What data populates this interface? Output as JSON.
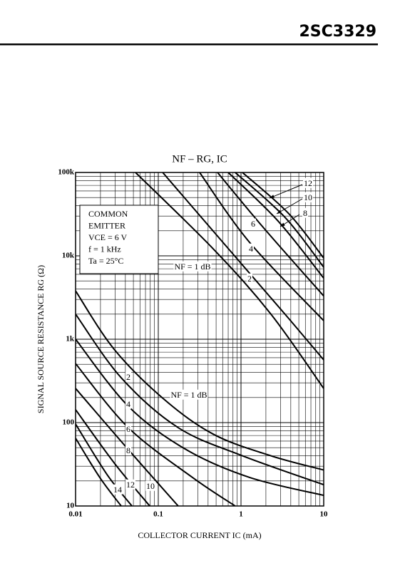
{
  "header": {
    "part_number": "2SC3329"
  },
  "chart_data": {
    "type": "line",
    "title": "NF – RG, IC",
    "xlabel": "COLLECTOR CURRENT IC (mA)",
    "ylabel": "SIGNAL SOURCE RESISTANCE RG (Ω)",
    "annotation": [
      "COMMON",
      "EMITTER",
      "VCE = 6 V",
      "f = 1 kHz",
      "Ta = 25°C"
    ],
    "xscale": "log",
    "yscale": "log",
    "grid": true,
    "xlim": [
      0.01,
      10
    ],
    "ylim": [
      10,
      100000
    ],
    "xticks": [
      0.01,
      0.1,
      1,
      10
    ],
    "yticks": [
      10,
      100,
      {
        "value": 1000,
        "label": "1k"
      },
      {
        "value": 10000,
        "label": "10k"
      },
      {
        "value": 100000,
        "label": "100k"
      }
    ],
    "series": [
      {
        "name": "NF = 1 dB",
        "color": "#000000",
        "x": [
          0.053,
          0.47,
          2.3,
          10
        ],
        "values": [
          100000,
          11900,
          2000,
          257
        ]
      },
      {
        "name": "2",
        "color": "#000000",
        "x": [
          0.113,
          0.85,
          3.4,
          10
        ],
        "values": [
          100000,
          9800,
          2000,
          565
        ]
      },
      {
        "name": "4",
        "color": "#000000",
        "x": [
          0.316,
          1.27,
          10
        ],
        "values": [
          100000,
          14500,
          1670
        ]
      },
      {
        "name": "6",
        "color": "#000000",
        "x": [
          0.52,
          1.89,
          10
        ],
        "values": [
          100000,
          21500,
          3300
        ]
      },
      {
        "name": "8",
        "color": "#000000",
        "x": [
          0.7,
          2.8,
          10
        ],
        "values": [
          100000,
          26200,
          5400
        ]
      },
      {
        "name": "10",
        "color": "#000000",
        "x": [
          0.85,
          3.4,
          10
        ],
        "values": [
          100000,
          29000,
          7300
        ]
      },
      {
        "name": "12",
        "color": "#000000",
        "x": [
          1.04,
          3.8,
          10
        ],
        "values": [
          100000,
          31900,
          9400
        ]
      },
      {
        "name": "NF = 1 dB",
        "color": "#000000",
        "x": [
          0.01,
          0.0292,
          0.117,
          0.47,
          2.3,
          10
        ],
        "values": [
          3800,
          760,
          191,
          72,
          40,
          27
        ]
      },
      {
        "name": "2",
        "color": "#000000",
        "x": [
          0.01,
          0.0356,
          0.174,
          1.04,
          10
        ],
        "values": [
          2000,
          345,
          87,
          40,
          18
        ]
      },
      {
        "name": "4",
        "color": "#000000",
        "x": [
          0.01,
          0.0434,
          0.213,
          1.27,
          10
        ],
        "values": [
          1000,
          157,
          48,
          22,
          13.4
        ]
      },
      {
        "name": "6",
        "color": "#000000",
        "x": [
          0.01,
          0.0434,
          0.259,
          0.85
        ],
        "values": [
          510,
          87,
          22,
          10
        ]
      },
      {
        "name": "8",
        "color": "#000000",
        "x": [
          0.01,
          0.0394,
          0.174
        ],
        "values": [
          257,
          53,
          10
        ]
      },
      {
        "name": "10",
        "color": "#000000",
        "x": [
          0.01,
          0.0292,
          0.0788
        ],
        "values": [
          143,
          33,
          10
        ]
      },
      {
        "name": "12",
        "color": "#000000",
        "x": [
          0.01,
          0.0239,
          0.048
        ],
        "values": [
          96,
          24,
          10
        ]
      },
      {
        "name": "14",
        "color": "#000000",
        "x": [
          0.01,
          0.0196,
          0.0356
        ],
        "values": [
          65,
          22,
          10
        ]
      }
    ]
  }
}
